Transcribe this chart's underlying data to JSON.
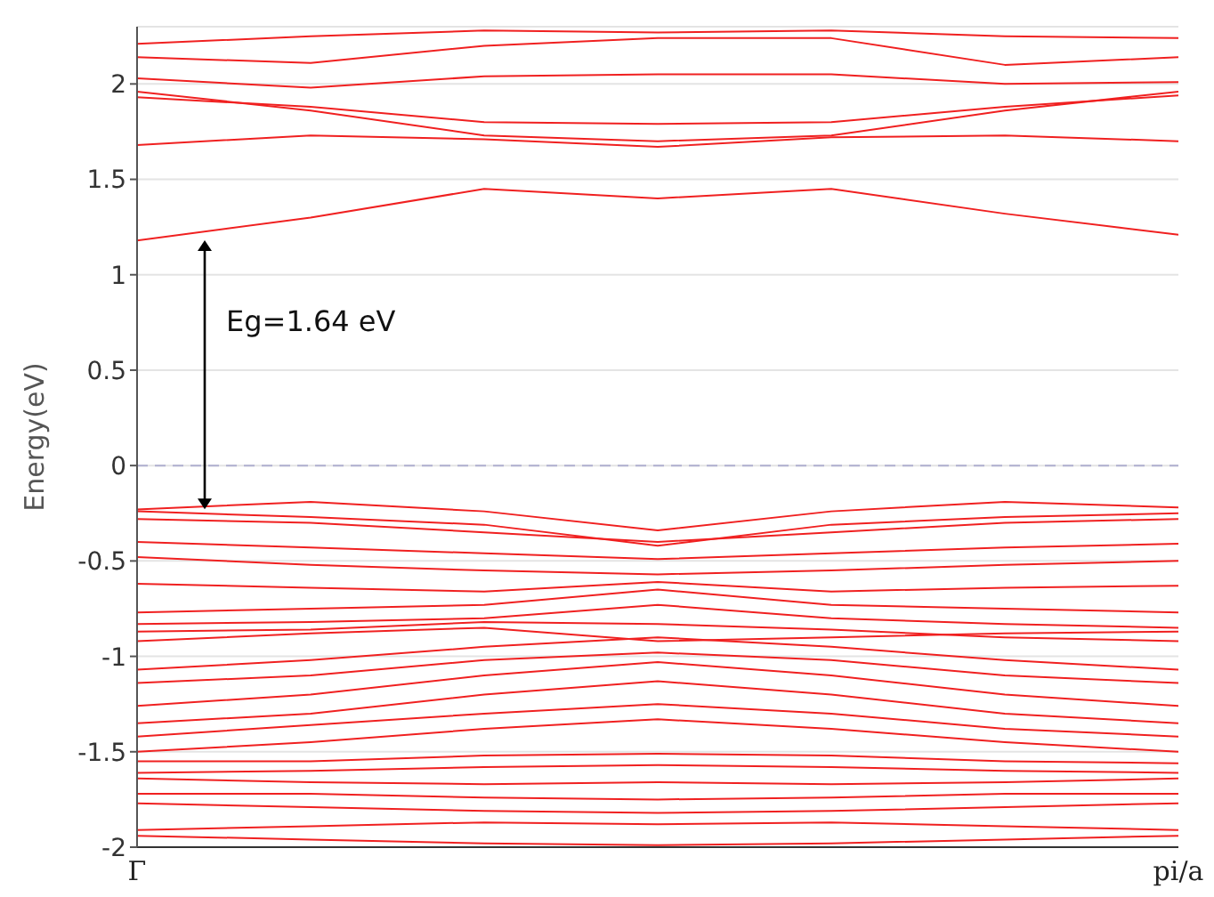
{
  "chart_data": {
    "type": "line",
    "ylabel": "Energy(eV)",
    "annotations": [
      "Eg=1.64 eV"
    ],
    "categories": [
      "Γ",
      null,
      null,
      null,
      null,
      null,
      "pi/a"
    ],
    "ylim": [
      -2,
      2.3
    ],
    "yticks": [
      -2,
      -1.5,
      -1,
      -0.5,
      0,
      0.5,
      1,
      1.5,
      2
    ],
    "grid": "y",
    "ref_lines": [
      {
        "axis": "y",
        "value": 0,
        "label": null,
        "color": "#b0b0d0",
        "line_style": "dashed"
      }
    ],
    "series": [
      {
        "color": "#f02020",
        "values": [
          1.18,
          1.3,
          1.45,
          1.4,
          1.45,
          1.32,
          1.21
        ]
      },
      {
        "color": "#f02020",
        "values": [
          1.68,
          1.73,
          1.71,
          1.67,
          1.72,
          1.73,
          1.7
        ]
      },
      {
        "color": "#f02020",
        "values": [
          1.93,
          1.88,
          1.8,
          1.79,
          1.8,
          1.88,
          1.94
        ]
      },
      {
        "color": "#f02020",
        "values": [
          1.96,
          1.86,
          1.73,
          1.7,
          1.73,
          1.86,
          1.96
        ]
      },
      {
        "color": "#f02020",
        "values": [
          2.03,
          1.98,
          2.04,
          2.05,
          2.05,
          2.0,
          2.01
        ]
      },
      {
        "color": "#f02020",
        "values": [
          2.14,
          2.11,
          2.2,
          2.24,
          2.24,
          2.1,
          2.14
        ]
      },
      {
        "color": "#f02020",
        "values": [
          2.21,
          2.25,
          2.28,
          2.27,
          2.28,
          2.25,
          2.24
        ]
      },
      {
        "color": "#f02020",
        "values": [
          -0.23,
          -0.19,
          -0.24,
          -0.34,
          -0.24,
          -0.19,
          -0.22
        ]
      },
      {
        "color": "#f02020",
        "values": [
          -0.24,
          -0.27,
          -0.31,
          -0.42,
          -0.31,
          -0.27,
          -0.25
        ]
      },
      {
        "color": "#f02020",
        "values": [
          -0.28,
          -0.3,
          -0.35,
          -0.4,
          -0.35,
          -0.3,
          -0.28
        ]
      },
      {
        "color": "#f02020",
        "values": [
          -0.4,
          -0.43,
          -0.46,
          -0.49,
          -0.46,
          -0.43,
          -0.41
        ]
      },
      {
        "color": "#f02020",
        "values": [
          -0.48,
          -0.52,
          -0.55,
          -0.57,
          -0.55,
          -0.52,
          -0.5
        ]
      },
      {
        "color": "#f02020",
        "values": [
          -0.62,
          -0.64,
          -0.66,
          -0.61,
          -0.66,
          -0.64,
          -0.63
        ]
      },
      {
        "color": "#f02020",
        "values": [
          -0.77,
          -0.75,
          -0.73,
          -0.65,
          -0.73,
          -0.75,
          -0.77
        ]
      },
      {
        "color": "#f02020",
        "values": [
          -0.83,
          -0.82,
          -0.8,
          -0.73,
          -0.8,
          -0.83,
          -0.85
        ]
      },
      {
        "color": "#f02020",
        "values": [
          -0.87,
          -0.86,
          -0.82,
          -0.83,
          -0.86,
          -0.9,
          -0.92
        ]
      },
      {
        "color": "#f02020",
        "values": [
          -0.92,
          -0.88,
          -0.85,
          -0.92,
          -0.9,
          -0.88,
          -0.87
        ]
      },
      {
        "color": "#f02020",
        "values": [
          -1.07,
          -1.02,
          -0.95,
          -0.9,
          -0.95,
          -1.02,
          -1.07
        ]
      },
      {
        "color": "#f02020",
        "values": [
          -1.14,
          -1.1,
          -1.02,
          -0.98,
          -1.02,
          -1.1,
          -1.14
        ]
      },
      {
        "color": "#f02020",
        "values": [
          -1.26,
          -1.2,
          -1.1,
          -1.03,
          -1.1,
          -1.2,
          -1.26
        ]
      },
      {
        "color": "#f02020",
        "values": [
          -1.35,
          -1.3,
          -1.2,
          -1.13,
          -1.2,
          -1.3,
          -1.35
        ]
      },
      {
        "color": "#f02020",
        "values": [
          -1.42,
          -1.36,
          -1.3,
          -1.25,
          -1.3,
          -1.38,
          -1.42
        ]
      },
      {
        "color": "#f02020",
        "values": [
          -1.5,
          -1.45,
          -1.38,
          -1.33,
          -1.38,
          -1.45,
          -1.5
        ]
      },
      {
        "color": "#f02020",
        "values": [
          -1.55,
          -1.55,
          -1.52,
          -1.51,
          -1.52,
          -1.55,
          -1.56
        ]
      },
      {
        "color": "#f02020",
        "values": [
          -1.61,
          -1.6,
          -1.58,
          -1.57,
          -1.58,
          -1.6,
          -1.61
        ]
      },
      {
        "color": "#f02020",
        "values": [
          -1.64,
          -1.66,
          -1.67,
          -1.66,
          -1.67,
          -1.66,
          -1.64
        ]
      },
      {
        "color": "#f02020",
        "values": [
          -1.72,
          -1.72,
          -1.74,
          -1.75,
          -1.74,
          -1.72,
          -1.72
        ]
      },
      {
        "color": "#f02020",
        "values": [
          -1.77,
          -1.79,
          -1.81,
          -1.82,
          -1.81,
          -1.79,
          -1.77
        ]
      },
      {
        "color": "#f02020",
        "values": [
          -1.91,
          -1.89,
          -1.87,
          -1.88,
          -1.87,
          -1.89,
          -1.91
        ]
      },
      {
        "color": "#f02020",
        "values": [
          -1.94,
          -1.96,
          -1.98,
          -1.99,
          -1.98,
          -1.96,
          -1.94
        ]
      }
    ]
  }
}
